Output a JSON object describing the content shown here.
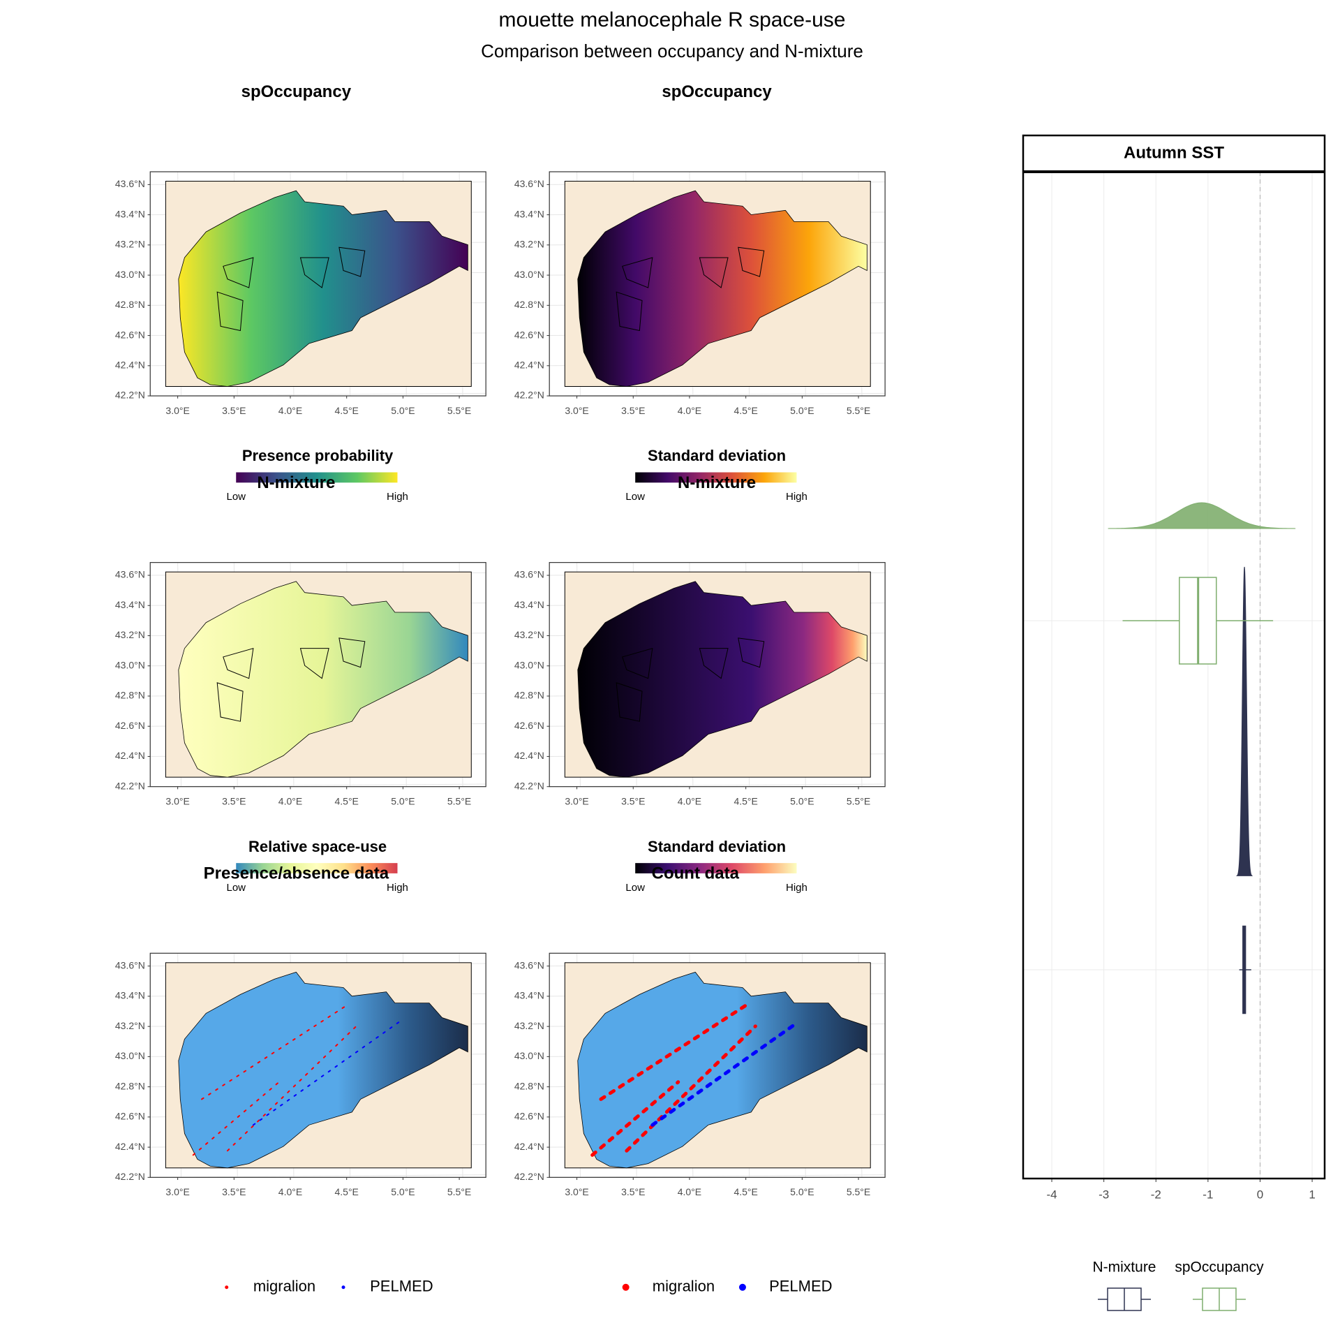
{
  "title": "mouette melanocephale R space-use",
  "subtitle": "Comparison between occupancy and N-mixture",
  "map_axes": {
    "xlim": [
      2.756,
      5.736
    ],
    "ylim": [
      42.2,
      43.685
    ],
    "xticks": [
      {
        "value": 3.0,
        "label": "3.0°E"
      },
      {
        "value": 3.5,
        "label": "3.5°E"
      },
      {
        "value": 4.0,
        "label": "4.0°E"
      },
      {
        "value": 4.5,
        "label": "4.5°E"
      },
      {
        "value": 5.0,
        "label": "5.0°E"
      },
      {
        "value": 5.5,
        "label": "5.5°E"
      }
    ],
    "yticks": [
      {
        "value": 42.2,
        "label": "42.2°N"
      },
      {
        "value": 42.4,
        "label": "42.4°N"
      },
      {
        "value": 42.6,
        "label": "42.6°N"
      },
      {
        "value": 42.8,
        "label": "42.8°N"
      },
      {
        "value": 43.0,
        "label": "43.0°N"
      },
      {
        "value": 43.2,
        "label": "43.2°N"
      },
      {
        "value": 43.4,
        "label": "43.4°N"
      },
      {
        "value": 43.6,
        "label": "43.6°N"
      }
    ]
  },
  "maps": [
    {
      "title": "spOccupancy",
      "legend_title": "Presence probability",
      "low": "Low",
      "high": "High",
      "palette": [
        "#440154",
        "#3b528b",
        "#21908c",
        "#5dc863",
        "#fde725"
      ]
    },
    {
      "title": "spOccupancy",
      "legend_title": "Standard deviation",
      "low": "Low",
      "high": "High",
      "palette": [
        "#000004",
        "#420a68",
        "#932667",
        "#dd513a",
        "#fca50a",
        "#fcffa4"
      ]
    },
    {
      "title": "N-mixture",
      "legend_title": "Relative space-use",
      "low": "Low",
      "high": "High",
      "palette": [
        "#3288bd",
        "#99d594",
        "#e6f598",
        "#ffffbf",
        "#fee08b",
        "#fc8d59",
        "#d53e4f"
      ]
    },
    {
      "title": "N-mixture",
      "legend_title": "Standard deviation",
      "low": "Low",
      "high": "High",
      "palette": [
        "#000004",
        "#3b0f70",
        "#8c2981",
        "#de4968",
        "#fe9f6d",
        "#fcfdbf"
      ]
    },
    {
      "title": "Presence/absence data",
      "legend": [
        {
          "name": "migralion",
          "color": "#ff0000"
        },
        {
          "name": "PELMED",
          "color": "#0000ff"
        }
      ]
    },
    {
      "title": "Count data",
      "legend": [
        {
          "name": "migralion",
          "color": "#ff0000"
        },
        {
          "name": "PELMED",
          "color": "#0000ff"
        }
      ]
    }
  ],
  "chart_data": {
    "type": "box-density",
    "title": "Autumn SST",
    "xlim": [
      -4.55,
      1.24
    ],
    "xticks": [
      -4,
      -3,
      -2,
      -1,
      0,
      1
    ],
    "ref_line": 0,
    "series": [
      {
        "name": "N-mixture",
        "color": "#2e3350",
        "whisker_low": -0.4,
        "q1": -0.33,
        "median": -0.31,
        "q3": -0.28,
        "whisker_high": -0.17,
        "density_mean": -0.3,
        "density_sd": 0.04
      },
      {
        "name": "spOccupancy",
        "color": "#7fae6e",
        "whisker_low": -2.64,
        "q1": -1.55,
        "median": -1.19,
        "q3": -0.84,
        "whisker_high": 0.25,
        "density_mean": -1.12,
        "density_sd": 0.5
      }
    ]
  }
}
